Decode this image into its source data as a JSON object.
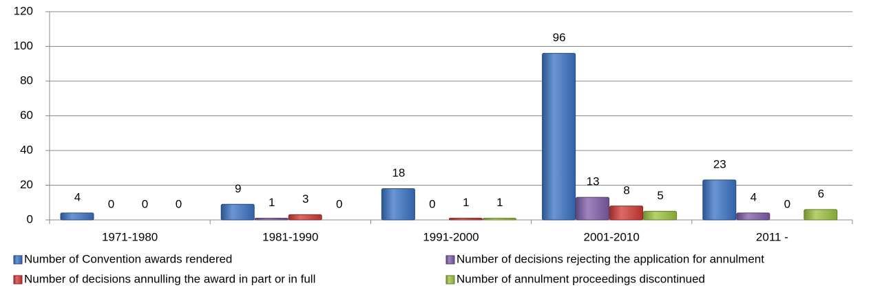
{
  "chart_data": {
    "type": "bar",
    "categories": [
      "1971-1980",
      "1981-1990",
      "1991-2000",
      "2001-2010",
      "2011 -"
    ],
    "series": [
      {
        "name": "Number of Convention awards rendered",
        "color": "#3a72c4",
        "values": [
          4,
          9,
          18,
          96,
          23
        ]
      },
      {
        "name": "Number of decisions rejecting the application for annulment",
        "color": "#7f5ca8",
        "values": [
          0,
          1,
          0,
          13,
          4
        ]
      },
      {
        "name": "Number of decisions annulling the award in part or in full",
        "color": "#d03a36",
        "values": [
          0,
          3,
          1,
          8,
          0
        ]
      },
      {
        "name": "Number of annulment proceedings discontinued",
        "color": "#9cc23f",
        "values": [
          0,
          0,
          1,
          5,
          6
        ]
      }
    ],
    "ylim": [
      0,
      120
    ],
    "yticks": [
      0,
      20,
      40,
      60,
      80,
      100,
      120
    ],
    "grid": true,
    "legend": "bottom"
  }
}
